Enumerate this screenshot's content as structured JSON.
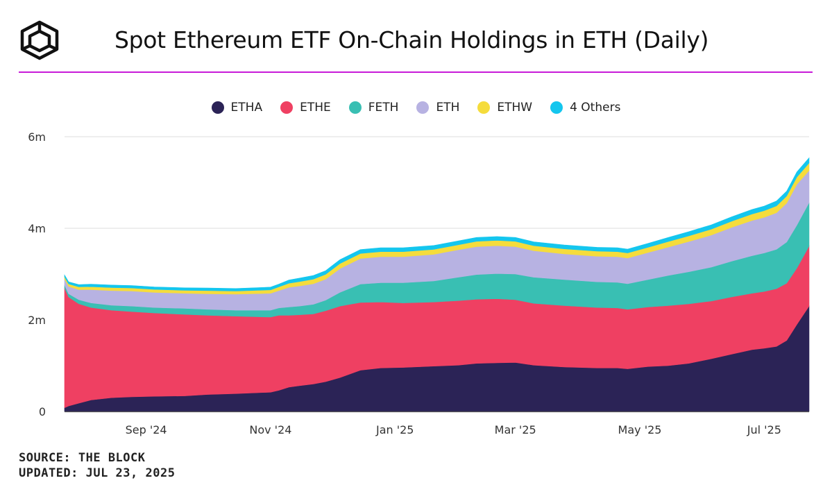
{
  "header": {
    "title": "Spot Ethereum ETF On-Chain Holdings in ETH (Daily)",
    "logo_icon": "the-block-cube-logo"
  },
  "colors": {
    "accent_rule": "#c71bd8",
    "ETHA": "#2b2356",
    "ETHE": "#ef4062",
    "FETH": "#39bfb3",
    "ETH": "#b7b2e2",
    "ETHW": "#f5dc3c",
    "4 Others": "#14c6ee"
  },
  "footer": {
    "source": "SOURCE: THE BLOCK",
    "updated": "UPDATED: JUL 23, 2025"
  },
  "chart_data": {
    "type": "area",
    "stacked": true,
    "title": "Spot Ethereum ETF On-Chain Holdings in ETH (Daily)",
    "xlabel": "",
    "ylabel": "",
    "ylim": [
      0,
      6000000
    ],
    "yticks": [
      0,
      2000000,
      4000000,
      6000000
    ],
    "ytick_labels": [
      "0",
      "2m",
      "4m",
      "6m"
    ],
    "xlim": [
      "2024-07-23",
      "2025-07-23"
    ],
    "xticks": [
      "2024-09-01",
      "2024-11-01",
      "2025-01-01",
      "2025-03-01",
      "2025-05-01",
      "2025-07-01"
    ],
    "xtick_labels": [
      "Sep '24",
      "Nov '24",
      "Jan '25",
      "Mar '25",
      "May '25",
      "Jul '25"
    ],
    "grid": "horizontal",
    "legend_position": "top-center",
    "x": [
      "2024-07-23",
      "2024-07-25",
      "2024-07-30",
      "2024-08-05",
      "2024-08-15",
      "2024-08-25",
      "2024-09-05",
      "2024-09-20",
      "2024-10-01",
      "2024-10-15",
      "2024-11-01",
      "2024-11-05",
      "2024-11-10",
      "2024-11-15",
      "2024-11-22",
      "2024-11-28",
      "2024-12-05",
      "2024-12-15",
      "2024-12-25",
      "2025-01-05",
      "2025-01-20",
      "2025-02-01",
      "2025-02-10",
      "2025-02-20",
      "2025-03-01",
      "2025-03-10",
      "2025-03-25",
      "2025-04-10",
      "2025-04-20",
      "2025-04-25",
      "2025-05-05",
      "2025-05-15",
      "2025-05-25",
      "2025-06-05",
      "2025-06-15",
      "2025-06-25",
      "2025-07-01",
      "2025-07-07",
      "2025-07-12",
      "2025-07-17",
      "2025-07-23"
    ],
    "series": [
      {
        "name": "ETHA",
        "values": [
          80000,
          120000,
          180000,
          250000,
          300000,
          320000,
          330000,
          340000,
          370000,
          390000,
          420000,
          460000,
          530000,
          560000,
          600000,
          650000,
          740000,
          900000,
          950000,
          960000,
          990000,
          1010000,
          1050000,
          1060000,
          1070000,
          1010000,
          970000,
          950000,
          950000,
          930000,
          980000,
          1000000,
          1050000,
          1150000,
          1250000,
          1350000,
          1380000,
          1420000,
          1550000,
          1900000,
          2300000
        ]
      },
      {
        "name": "ETHE",
        "values": [
          2620000,
          2380000,
          2170000,
          2020000,
          1910000,
          1860000,
          1820000,
          1780000,
          1730000,
          1690000,
          1640000,
          1640000,
          1570000,
          1550000,
          1530000,
          1550000,
          1560000,
          1480000,
          1440000,
          1410000,
          1400000,
          1410000,
          1400000,
          1400000,
          1370000,
          1350000,
          1340000,
          1320000,
          1310000,
          1300000,
          1300000,
          1310000,
          1300000,
          1260000,
          1250000,
          1230000,
          1240000,
          1260000,
          1250000,
          1230000,
          1310000
        ]
      },
      {
        "name": "FETH",
        "values": [
          60000,
          70000,
          90000,
          100000,
          110000,
          120000,
          120000,
          130000,
          130000,
          130000,
          150000,
          160000,
          180000,
          190000,
          210000,
          230000,
          300000,
          400000,
          420000,
          440000,
          460000,
          510000,
          540000,
          550000,
          560000,
          570000,
          570000,
          560000,
          560000,
          560000,
          600000,
          660000,
          700000,
          740000,
          780000,
          820000,
          840000,
          860000,
          900000,
          940000,
          950000
        ]
      },
      {
        "name": "ETH",
        "values": [
          130000,
          160000,
          220000,
          290000,
          320000,
          330000,
          330000,
          330000,
          340000,
          350000,
          370000,
          380000,
          430000,
          440000,
          450000,
          460000,
          520000,
          560000,
          570000,
          570000,
          580000,
          600000,
          610000,
          610000,
          600000,
          580000,
          560000,
          560000,
          560000,
          560000,
          590000,
          620000,
          660000,
          700000,
          740000,
          770000,
          780000,
          800000,
          850000,
          890000,
          700000
        ]
      },
      {
        "name": "ETHW",
        "values": [
          50000,
          55000,
          60000,
          65000,
          65000,
          65000,
          65000,
          65000,
          70000,
          70000,
          75000,
          80000,
          90000,
          95000,
          100000,
          105000,
          110000,
          110000,
          110000,
          110000,
          110000,
          110000,
          115000,
          115000,
          115000,
          110000,
          110000,
          110000,
          110000,
          110000,
          115000,
          120000,
          125000,
          130000,
          135000,
          140000,
          145000,
          150000,
          155000,
          160000,
          165000
        ]
      },
      {
        "name": "4 Others",
        "values": [
          40000,
          45000,
          50000,
          55000,
          55000,
          55000,
          55000,
          55000,
          55000,
          55000,
          60000,
          60000,
          70000,
          75000,
          80000,
          80000,
          85000,
          85000,
          85000,
          85000,
          85000,
          85000,
          85000,
          85000,
          85000,
          85000,
          85000,
          85000,
          85000,
          85000,
          85000,
          90000,
          90000,
          95000,
          95000,
          100000,
          100000,
          105000,
          105000,
          110000,
          115000
        ]
      }
    ]
  }
}
